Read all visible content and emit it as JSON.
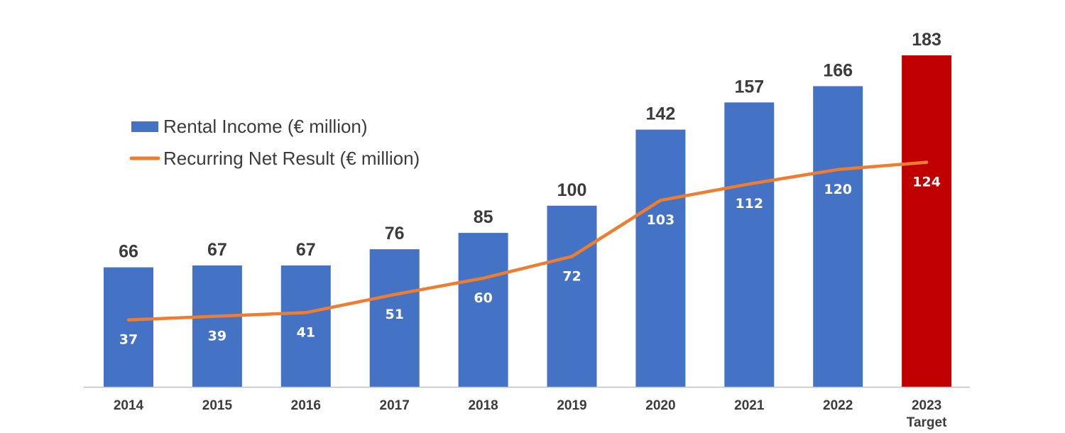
{
  "chart_data": {
    "type": "bar",
    "categories": [
      "2014",
      "2015",
      "2016",
      "2017",
      "2018",
      "2019",
      "2020",
      "2021",
      "2022",
      "2023\nTarget"
    ],
    "category_lines": [
      [
        "2014"
      ],
      [
        "2015"
      ],
      [
        "2016"
      ],
      [
        "2017"
      ],
      [
        "2018"
      ],
      [
        "2019"
      ],
      [
        "2020"
      ],
      [
        "2021"
      ],
      [
        "2022"
      ],
      [
        "2023",
        "Target"
      ]
    ],
    "series": [
      {
        "name": "Rental Income (€ million)",
        "kind": "bar",
        "color": "#4472c4",
        "highlight_color": "#c00000",
        "highlight_index": 9,
        "values": [
          66,
          67,
          67,
          76,
          85,
          100,
          142,
          157,
          166,
          183
        ]
      },
      {
        "name": "Recurring Net Result (€ million)",
        "kind": "line",
        "color": "#ed7d31",
        "values": [
          37,
          39,
          41,
          51,
          60,
          72,
          103,
          112,
          120,
          124
        ]
      }
    ],
    "ylim": [
      0,
      183
    ],
    "grid": false,
    "legend_position": "top-left",
    "title": "",
    "xlabel": "",
    "ylabel": ""
  }
}
